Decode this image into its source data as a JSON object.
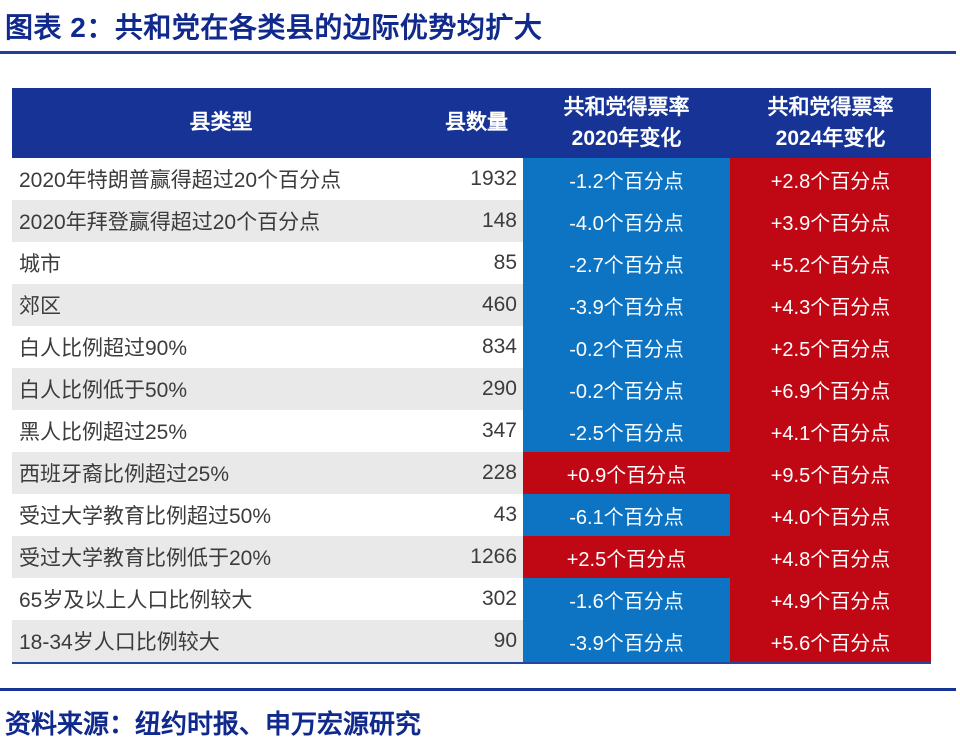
{
  "title": "图表 2：共和党在各类县的边际优势均扩大",
  "source": "资料来源：纽约时报、申万宏源研究",
  "colors": {
    "title_navy": "#10298c",
    "header_bg": "#163395",
    "blue_cell": "#0d74c4",
    "red_cell": "#c00714",
    "row_alt_gray": "#e9e9e9",
    "rule_blue": "#1e3f9f"
  },
  "table": {
    "headers": [
      "县类型",
      "县数量",
      "共和党得票率\n2020年变化",
      "共和党得票率\n2024年变化"
    ],
    "rows": [
      {
        "type": "2020年特朗普赢得超过20个百分点",
        "count": "1932",
        "change_2020": "-1.2个百分点",
        "change_2020_bg": "blue",
        "change_2024": "+2.8个百分点",
        "change_2024_bg": "red"
      },
      {
        "type": "2020年拜登赢得超过20个百分点",
        "count": "148",
        "change_2020": "-4.0个百分点",
        "change_2020_bg": "blue",
        "change_2024": "+3.9个百分点",
        "change_2024_bg": "red"
      },
      {
        "type": "城市",
        "count": "85",
        "change_2020": "-2.7个百分点",
        "change_2020_bg": "blue",
        "change_2024": "+5.2个百分点",
        "change_2024_bg": "red"
      },
      {
        "type": "郊区",
        "count": "460",
        "change_2020": "-3.9个百分点",
        "change_2020_bg": "blue",
        "change_2024": "+4.3个百分点",
        "change_2024_bg": "red"
      },
      {
        "type": "白人比例超过90%",
        "count": "834",
        "change_2020": "-0.2个百分点",
        "change_2020_bg": "blue",
        "change_2024": "+2.5个百分点",
        "change_2024_bg": "red"
      },
      {
        "type": "白人比例低于50%",
        "count": "290",
        "change_2020": "-0.2个百分点",
        "change_2020_bg": "blue",
        "change_2024": "+6.9个百分点",
        "change_2024_bg": "red"
      },
      {
        "type": "黑人比例超过25%",
        "count": "347",
        "change_2020": "-2.5个百分点",
        "change_2020_bg": "blue",
        "change_2024": "+4.1个百分点",
        "change_2024_bg": "red"
      },
      {
        "type": "西班牙裔比例超过25%",
        "count": "228",
        "change_2020": "+0.9个百分点",
        "change_2020_bg": "red",
        "change_2024": "+9.5个百分点",
        "change_2024_bg": "red"
      },
      {
        "type": "受过大学教育比例超过50%",
        "count": "43",
        "change_2020": "-6.1个百分点",
        "change_2020_bg": "blue",
        "change_2024": "+4.0个百分点",
        "change_2024_bg": "red"
      },
      {
        "type": "受过大学教育比例低于20%",
        "count": "1266",
        "change_2020": "+2.5个百分点",
        "change_2020_bg": "red",
        "change_2024": "+4.8个百分点",
        "change_2024_bg": "red"
      },
      {
        "type": "65岁及以上人口比例较大",
        "count": "302",
        "change_2020": "-1.6个百分点",
        "change_2020_bg": "blue",
        "change_2024": "+4.9个百分点",
        "change_2024_bg": "red"
      },
      {
        "type": "18-34岁人口比例较大",
        "count": "90",
        "change_2020": "-3.9个百分点",
        "change_2020_bg": "blue",
        "change_2024": "+5.6个百分点",
        "change_2024_bg": "red"
      }
    ]
  },
  "chart_data": {
    "type": "table",
    "title": "图表 2：共和党在各类县的边际优势均扩大",
    "columns": [
      "县类型",
      "县数量",
      "共和党得票率2020年变化",
      "共和党得票率2024年变化"
    ],
    "categories": [
      "2020年特朗普赢得超过20个百分点",
      "2020年拜登赢得超过20个百分点",
      "城市",
      "郊区",
      "白人比例超过90%",
      "白人比例低于50%",
      "黑人比例超过25%",
      "西班牙裔比例超过25%",
      "受过大学教育比例超过50%",
      "受过大学教育比例低于20%",
      "65岁及以上人口比例较大",
      "18-34岁人口比例较大"
    ],
    "series": [
      {
        "name": "县数量",
        "values": [
          1932,
          148,
          85,
          460,
          834,
          290,
          347,
          228,
          43,
          1266,
          302,
          90
        ]
      },
      {
        "name": "共和党得票率2020年变化(个百分点)",
        "values": [
          -1.2,
          -4.0,
          -2.7,
          -3.9,
          -0.2,
          -0.2,
          -2.5,
          0.9,
          -6.1,
          2.5,
          -1.6,
          -3.9
        ]
      },
      {
        "name": "共和党得票率2024年变化(个百分点)",
        "values": [
          2.8,
          3.9,
          5.2,
          4.3,
          2.5,
          6.9,
          4.1,
          9.5,
          4.0,
          4.8,
          4.9,
          5.6
        ]
      }
    ],
    "cell_color_rule": "2020列负值为蓝色底、正值为红色底；2024列全部为红色底",
    "source": "资料来源：纽约时报、申万宏源研究"
  }
}
